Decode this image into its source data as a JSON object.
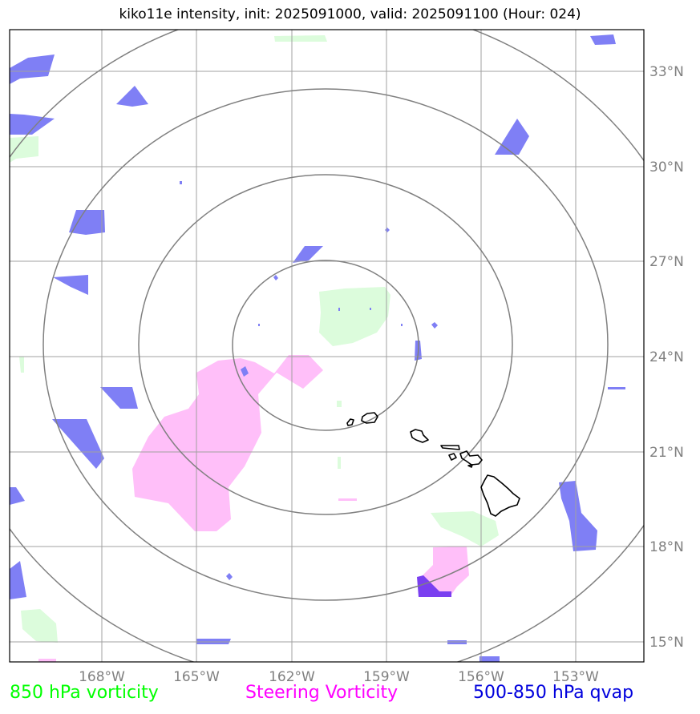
{
  "title": "kiko11e intensity, init: 2025091000, valid: 2025091100 (Hour: 024)",
  "lon_labels": [
    "168°W",
    "165°W",
    "162°W",
    "159°W",
    "156°W",
    "153°W"
  ],
  "lat_labels": [
    "33°N",
    "30°N",
    "27°N",
    "24°N",
    "21°N",
    "18°N",
    "15°N"
  ],
  "legend": {
    "vort850": {
      "label": "850 hPa vorticity",
      "color": "#00ff00"
    },
    "steering": {
      "label": "Steering Vorticity",
      "color": "#ff00ff"
    },
    "qvap": {
      "label": "500-850 hPa qvap",
      "color": "#0000dd"
    }
  },
  "colors": {
    "vort850_fill": "#dcfcdc",
    "steering_fill": "#ffbff9",
    "qvap_fill": "#7f7ff5",
    "overlap_fill": "#7a3ff0",
    "grid": "#a0a0a0",
    "rings": "#808080",
    "coastline": "#000000"
  }
}
